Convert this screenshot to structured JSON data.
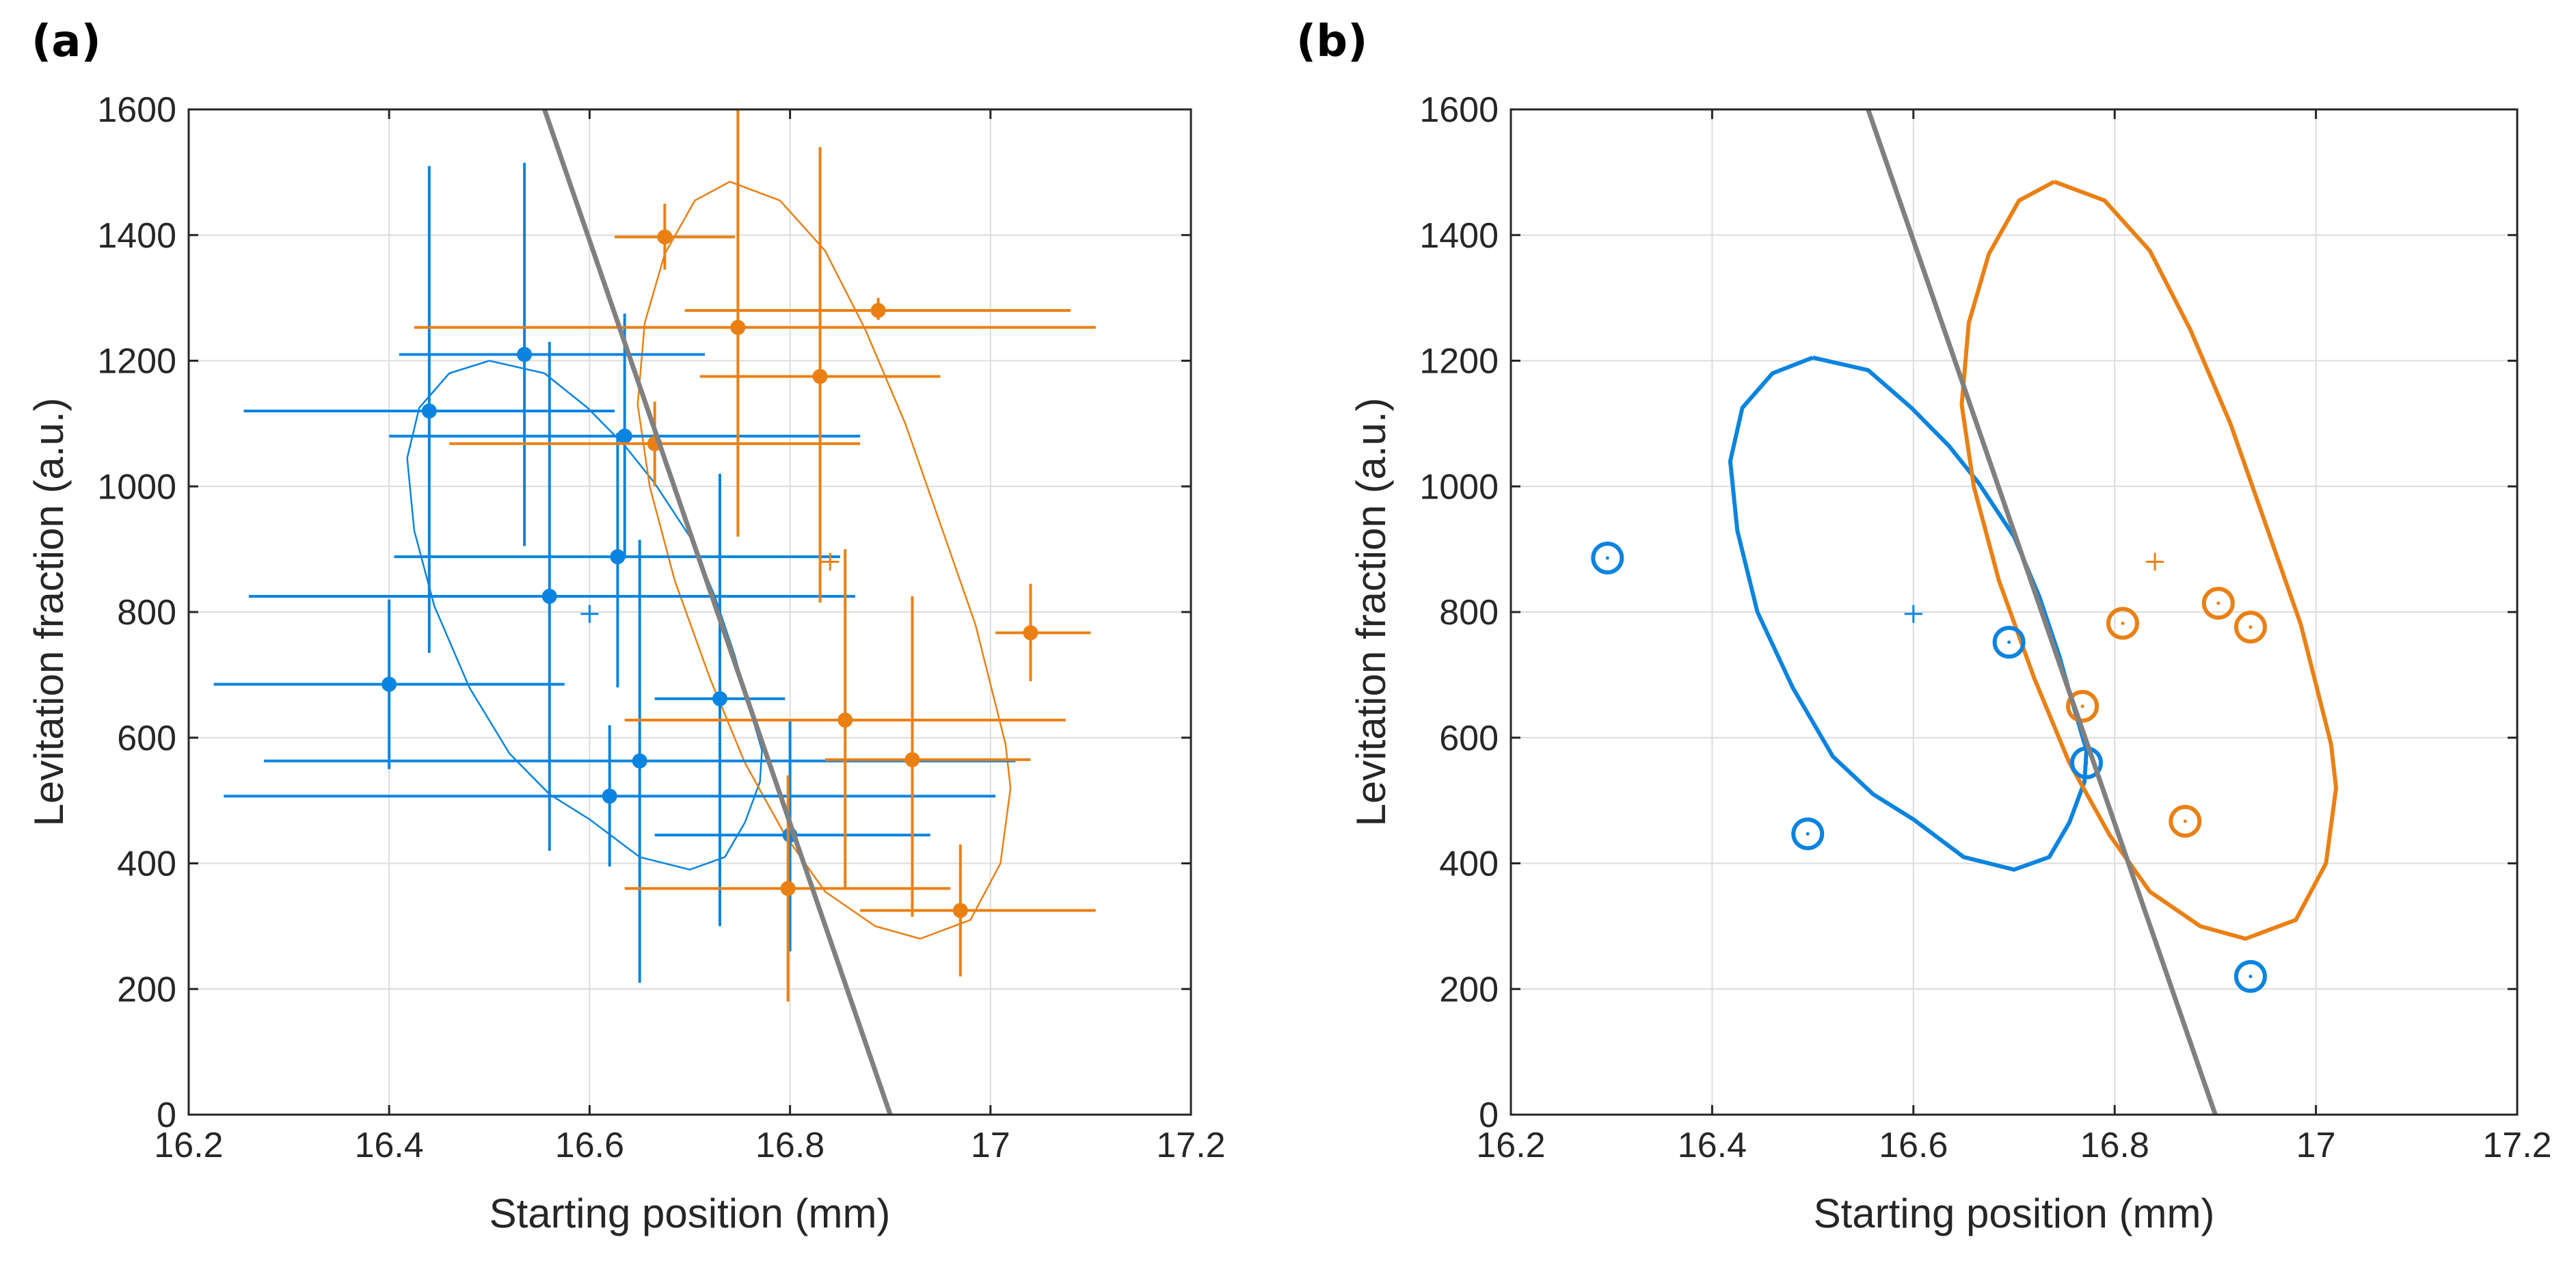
{
  "colors": {
    "blue": "#0a84e0",
    "orange": "#ea8014",
    "fit": "#808080",
    "text": "#262626"
  },
  "chart_data": [
    {
      "panel_label": "(a)",
      "type": "scatter",
      "xlabel": "Starting position (mm)",
      "ylabel": "Levitation fraction (a.u.)",
      "xlim": [
        16.2,
        17.2
      ],
      "ylim": [
        0,
        1600
      ],
      "xticks": [
        16.2,
        16.4,
        16.6,
        16.8,
        17,
        17.2
      ],
      "xtick_labels": [
        "16.2",
        "16.4",
        "16.6",
        "16.8",
        "17",
        "17.2"
      ],
      "yticks": [
        0,
        200,
        400,
        600,
        800,
        1000,
        1200,
        1400,
        1600
      ],
      "ytick_labels": [
        "0",
        "200",
        "400",
        "600",
        "800",
        "1000",
        "1200",
        "1400",
        "1600"
      ],
      "grid": true,
      "fit_line": [
        [
          16.555,
          1600
        ],
        [
          16.9,
          0
        ]
      ],
      "series": [
        {
          "color": "blue",
          "points": [
            {
              "x": 16.535,
              "y": 1210,
              "xerr": [
                16.41,
                16.715
              ],
              "yerr": [
                905,
                1515
              ]
            },
            {
              "x": 16.44,
              "y": 1120,
              "xerr": [
                16.255,
                16.625
              ],
              "yerr": [
                735,
                1510
              ]
            },
            {
              "x": 16.635,
              "y": 1080,
              "xerr": [
                16.4,
                16.87
              ],
              "yerr": [
                885,
                1275
              ]
            },
            {
              "x": 16.628,
              "y": 888,
              "xerr": [
                16.405,
                16.85
              ],
              "yerr": [
                680,
                1085
              ]
            },
            {
              "x": 16.56,
              "y": 825,
              "xerr": [
                16.26,
                16.865
              ],
              "yerr": [
                420,
                1230
              ]
            },
            {
              "x": 16.4,
              "y": 685,
              "xerr": [
                16.225,
                16.575
              ],
              "yerr": [
                550,
                820
              ]
            },
            {
              "x": 16.73,
              "y": 662,
              "xerr": [
                16.665,
                16.795
              ],
              "yerr": [
                300,
                1020
              ]
            },
            {
              "x": 16.65,
              "y": 563,
              "xerr": [
                16.275,
                17.025
              ],
              "yerr": [
                210,
                915
              ]
            },
            {
              "x": 16.62,
              "y": 507,
              "xerr": [
                16.235,
                17.005
              ],
              "yerr": [
                395,
                620
              ]
            },
            {
              "x": 16.8,
              "y": 445,
              "xerr": [
                16.665,
                16.94
              ],
              "yerr": [
                260,
                630
              ]
            }
          ],
          "centroid": {
            "x": 16.6,
            "y": 797
          },
          "ellipse": [
            [
              16.5,
              1200
            ],
            [
              16.555,
              1180
            ],
            [
              16.598,
              1125
            ],
            [
              16.635,
              1065
            ],
            [
              16.665,
              1005
            ],
            [
              16.7,
              920
            ],
            [
              16.725,
              825
            ],
            [
              16.745,
              730
            ],
            [
              16.76,
              645
            ],
            [
              16.772,
              580
            ],
            [
              16.77,
              530
            ],
            [
              16.755,
              465
            ],
            [
              16.735,
              410
            ],
            [
              16.7,
              390
            ],
            [
              16.65,
              410
            ],
            [
              16.6,
              470
            ],
            [
              16.56,
              510
            ],
            [
              16.52,
              575
            ],
            [
              16.48,
              680
            ],
            [
              16.445,
              810
            ],
            [
              16.425,
              930
            ],
            [
              16.418,
              1045
            ],
            [
              16.43,
              1125
            ],
            [
              16.46,
              1180
            ],
            [
              16.5,
              1200
            ]
          ]
        },
        {
          "color": "orange",
          "points": [
            {
              "x": 16.675,
              "y": 1397,
              "xerr": [
                16.625,
                16.745
              ],
              "yerr": [
                1345,
                1450
              ]
            },
            {
              "x": 16.888,
              "y": 1280,
              "xerr": [
                16.695,
                17.08
              ],
              "yerr": [
                1265,
                1300
              ]
            },
            {
              "x": 16.748,
              "y": 1253,
              "xerr": [
                16.425,
                17.105
              ],
              "yerr": [
                920,
                1600
              ]
            },
            {
              "x": 16.83,
              "y": 1175,
              "xerr": [
                16.71,
                16.95
              ],
              "yerr": [
                815,
                1540
              ]
            },
            {
              "x": 16.665,
              "y": 1068,
              "xerr": [
                16.46,
                16.87
              ],
              "yerr": [
                1000,
                1135
              ]
            },
            {
              "x": 17.04,
              "y": 767,
              "xerr": [
                17.005,
                17.1
              ],
              "yerr": [
                690,
                845
              ]
            },
            {
              "x": 16.855,
              "y": 628,
              "xerr": [
                16.635,
                17.075
              ],
              "yerr": [
                360,
                900
              ]
            },
            {
              "x": 16.922,
              "y": 565,
              "xerr": [
                16.835,
                17.04
              ],
              "yerr": [
                315,
                825
              ]
            },
            {
              "x": 16.798,
              "y": 360,
              "xerr": [
                16.635,
                16.96
              ],
              "yerr": [
                180,
                540
              ]
            },
            {
              "x": 16.97,
              "y": 325,
              "xerr": [
                16.87,
                17.105
              ],
              "yerr": [
                220,
                430
              ]
            }
          ],
          "centroid": {
            "x": 16.84,
            "y": 880
          },
          "ellipse": [
            [
              16.74,
              1485
            ],
            [
              16.79,
              1455
            ],
            [
              16.835,
              1375
            ],
            [
              16.875,
              1250
            ],
            [
              16.915,
              1100
            ],
            [
              16.95,
              940
            ],
            [
              16.985,
              780
            ],
            [
              17.015,
              590
            ],
            [
              17.02,
              520
            ],
            [
              17.01,
              400
            ],
            [
              16.98,
              310
            ],
            [
              16.93,
              280
            ],
            [
              16.885,
              300
            ],
            [
              16.835,
              355
            ],
            [
              16.795,
              445
            ],
            [
              16.755,
              560
            ],
            [
              16.72,
              695
            ],
            [
              16.685,
              850
            ],
            [
              16.66,
              1000
            ],
            [
              16.648,
              1130
            ],
            [
              16.655,
              1260
            ],
            [
              16.675,
              1370
            ],
            [
              16.705,
              1455
            ],
            [
              16.74,
              1485
            ]
          ]
        }
      ]
    },
    {
      "panel_label": "(b)",
      "type": "scatter",
      "xlabel": "Starting position (mm)",
      "ylabel": "Levitation fraction (a.u.)",
      "xlim": [
        16.2,
        17.2
      ],
      "ylim": [
        0,
        1600
      ],
      "xticks": [
        16.2,
        16.4,
        16.6,
        16.8,
        17,
        17.2
      ],
      "xtick_labels": [
        "16.2",
        "16.4",
        "16.6",
        "16.8",
        "17",
        "17.2"
      ],
      "yticks": [
        0,
        200,
        400,
        600,
        800,
        1000,
        1200,
        1400,
        1600
      ],
      "ytick_labels": [
        "0",
        "200",
        "400",
        "600",
        "800",
        "1000",
        "1200",
        "1400",
        "1600"
      ],
      "grid": true,
      "fit_line": [
        [
          16.555,
          1600
        ],
        [
          16.9,
          0
        ]
      ],
      "series": [
        {
          "color": "blue",
          "points": [
            {
              "x": 16.296,
              "y": 886
            },
            {
              "x": 16.695,
              "y": 752
            },
            {
              "x": 16.772,
              "y": 560
            },
            {
              "x": 16.495,
              "y": 447
            },
            {
              "x": 16.935,
              "y": 220
            }
          ],
          "centroid": {
            "x": 16.6,
            "y": 797
          },
          "ellipse": [
            [
              16.5,
              1205
            ],
            [
              16.555,
              1185
            ],
            [
              16.598,
              1125
            ],
            [
              16.635,
              1065
            ],
            [
              16.665,
              1005
            ],
            [
              16.7,
              920
            ],
            [
              16.725,
              825
            ],
            [
              16.745,
              730
            ],
            [
              16.76,
              645
            ],
            [
              16.772,
              580
            ],
            [
              16.77,
              530
            ],
            [
              16.755,
              465
            ],
            [
              16.735,
              410
            ],
            [
              16.7,
              390
            ],
            [
              16.65,
              410
            ],
            [
              16.6,
              470
            ],
            [
              16.56,
              510
            ],
            [
              16.52,
              570
            ],
            [
              16.48,
              680
            ],
            [
              16.445,
              800
            ],
            [
              16.425,
              930
            ],
            [
              16.418,
              1040
            ],
            [
              16.43,
              1125
            ],
            [
              16.46,
              1180
            ],
            [
              16.5,
              1205
            ]
          ]
        },
        {
          "color": "orange",
          "points": [
            {
              "x": 16.768,
              "y": 650
            },
            {
              "x": 16.808,
              "y": 782
            },
            {
              "x": 16.903,
              "y": 814
            },
            {
              "x": 16.935,
              "y": 776
            },
            {
              "x": 16.87,
              "y": 467
            }
          ],
          "centroid": {
            "x": 16.84,
            "y": 880
          },
          "ellipse": [
            [
              16.74,
              1485
            ],
            [
              16.79,
              1455
            ],
            [
              16.835,
              1375
            ],
            [
              16.875,
              1250
            ],
            [
              16.915,
              1100
            ],
            [
              16.95,
              940
            ],
            [
              16.985,
              780
            ],
            [
              17.015,
              590
            ],
            [
              17.02,
              520
            ],
            [
              17.01,
              400
            ],
            [
              16.98,
              310
            ],
            [
              16.93,
              280
            ],
            [
              16.885,
              300
            ],
            [
              16.835,
              355
            ],
            [
              16.795,
              445
            ],
            [
              16.755,
              560
            ],
            [
              16.72,
              695
            ],
            [
              16.685,
              850
            ],
            [
              16.66,
              1000
            ],
            [
              16.648,
              1130
            ],
            [
              16.655,
              1260
            ],
            [
              16.675,
              1370
            ],
            [
              16.705,
              1455
            ],
            [
              16.74,
              1485
            ]
          ]
        }
      ]
    }
  ]
}
